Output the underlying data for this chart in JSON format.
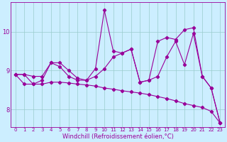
{
  "background_color": "#cceeff",
  "grid_color": "#99cccc",
  "line_color": "#990099",
  "xlabel": "Windchill (Refroidissement éolien,°C)",
  "xlabel_fontsize": 6,
  "xtick_fontsize": 5,
  "ytick_fontsize": 6,
  "xlim": [
    -0.5,
    23.5
  ],
  "ylim": [
    7.55,
    10.75
  ],
  "yticks": [
    8,
    9,
    10
  ],
  "series": [
    {
      "x": [
        0,
        1,
        2,
        3,
        4,
        5,
        6,
        7,
        8,
        9,
        10,
        11,
        12,
        13,
        14,
        15,
        16,
        17,
        18,
        19,
        20,
        21,
        22,
        23
      ],
      "y": [
        8.9,
        8.9,
        8.65,
        8.75,
        9.2,
        9.2,
        9.0,
        8.8,
        8.75,
        9.05,
        10.55,
        9.5,
        9.45,
        9.55,
        8.7,
        8.75,
        9.75,
        9.85,
        9.8,
        10.05,
        10.1,
        8.85,
        8.55,
        7.65
      ]
    },
    {
      "x": [
        0,
        1,
        2,
        3,
        4,
        5,
        6,
        7,
        8,
        9,
        10,
        11,
        12,
        13,
        14,
        15,
        16,
        17,
        18,
        19,
        20,
        21,
        22,
        23
      ],
      "y": [
        8.9,
        8.9,
        8.85,
        8.85,
        9.2,
        9.1,
        8.85,
        8.75,
        8.75,
        8.85,
        9.05,
        9.35,
        9.45,
        9.55,
        8.7,
        8.75,
        8.85,
        9.35,
        9.75,
        9.15,
        9.95,
        8.85,
        8.55,
        7.65
      ]
    },
    {
      "x": [
        0,
        1,
        2,
        3,
        4,
        5,
        6,
        7,
        8,
        9,
        10,
        11,
        12,
        13,
        14,
        15,
        16,
        17,
        18,
        19,
        20,
        21,
        22,
        23
      ],
      "y": [
        8.9,
        8.65,
        8.65,
        8.65,
        8.7,
        8.7,
        8.68,
        8.65,
        8.63,
        8.6,
        8.55,
        8.52,
        8.48,
        8.45,
        8.42,
        8.38,
        8.33,
        8.28,
        8.22,
        8.15,
        8.1,
        8.05,
        7.95,
        7.65
      ]
    }
  ]
}
